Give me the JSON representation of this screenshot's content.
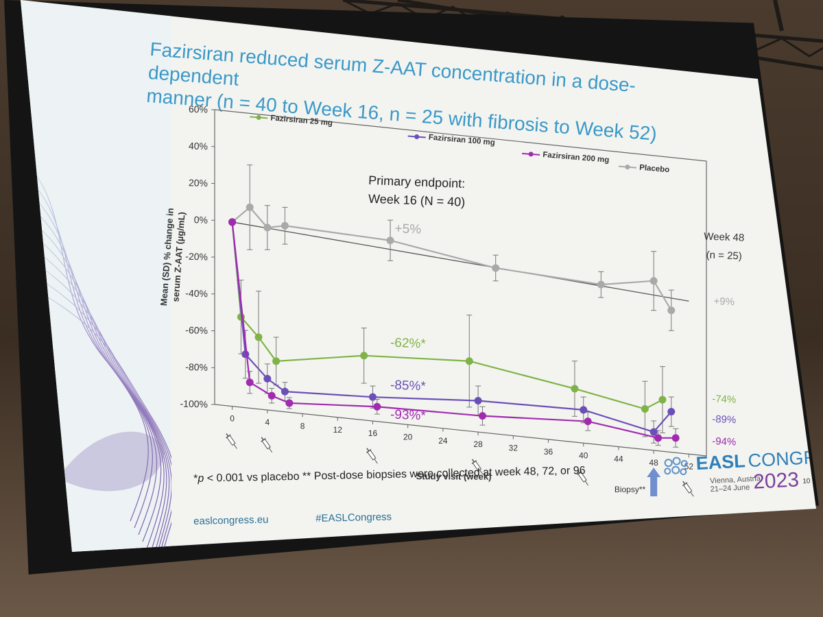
{
  "slide": {
    "title_line1": "Fazirsiran reduced serum Z-AAT concentration in a dose-dependent",
    "title_line2": "manner (n = 40 to Week 16, n = 25 with fibrosis to Week 52)",
    "footnote_p": "p",
    "footnote_rest": " < 0.001 vs placebo  ** Post-dose biopsies were collected at week 48, 72, or 96",
    "url": "easlcongress.eu",
    "hashtag": "#EASLCongress",
    "logo_word1": "EASL",
    "logo_word2": "CONGRESS",
    "logo_city": "Vienna, Austria",
    "logo_dates": "21–24 June",
    "logo_year": "2023",
    "page_number_1": "10",
    "page_number_2": "10"
  },
  "colors": {
    "slide_title": "#3a98c8",
    "fazirsiran_25": "#7fb347",
    "fazirsiran_100": "#6b4fb8",
    "fazirsiran_200": "#a12ab0",
    "placebo": "#a9a9a9"
  },
  "chart_data": {
    "type": "line",
    "xlabel": "Study visit (week)",
    "ylabel_line1": "Mean (SD) % change in",
    "ylabel_line2": "serum Z-AAT (µg/mL)",
    "xlim": [
      -2,
      54
    ],
    "ylim": [
      -100,
      60
    ],
    "x_ticks": [
      0,
      4,
      8,
      12,
      16,
      20,
      24,
      28,
      32,
      36,
      40,
      44,
      48,
      52
    ],
    "y_ticks": [
      60,
      40,
      20,
      0,
      -20,
      -40,
      -60,
      -80,
      -100
    ],
    "y_tick_labels": [
      "60%",
      "40%",
      "20%",
      "0%",
      "-20%",
      "-40%",
      "-60%",
      "-80%",
      "-100%"
    ],
    "legend_position": "top",
    "series": [
      {
        "name": "Fazirsiran 25 mg",
        "color": "#7fb347",
        "x": [
          0,
          1,
          3,
          5,
          15,
          27,
          39,
          47,
          49
        ],
        "y": [
          0,
          -51,
          -61,
          -73,
          -65,
          -62,
          -71,
          -78,
          -72
        ],
        "sd": [
          0,
          20,
          25,
          13,
          15,
          25,
          15,
          15,
          18
        ]
      },
      {
        "name": "Fazirsiran 100 mg",
        "color": "#6b4fb8",
        "x": [
          0,
          1.5,
          4,
          6,
          16,
          28,
          40,
          48,
          50
        ],
        "y": [
          0,
          -71,
          -83,
          -89,
          -87,
          -83,
          -82,
          -90,
          -78
        ],
        "sd": [
          0,
          13,
          8,
          5,
          6,
          8,
          7,
          6,
          8
        ]
      },
      {
        "name": "Fazirsiran 200 mg",
        "color": "#a12ab0",
        "x": [
          0,
          2,
          4.5,
          6.5,
          16.5,
          28.5,
          40.5,
          48.5,
          50.5
        ],
        "y": [
          0,
          -86,
          -92,
          -95,
          -92,
          -91,
          -88,
          -93,
          -92
        ],
        "sd": [
          0,
          6,
          4,
          3,
          4,
          5,
          5,
          4,
          5
        ]
      },
      {
        "name": "Placebo",
        "color": "#a9a9a9",
        "x": [
          0,
          2,
          4,
          6,
          18,
          30,
          42,
          48,
          50
        ],
        "y": [
          0,
          9,
          -1,
          1,
          -1,
          -10,
          -13,
          -8,
          -23
        ],
        "sd": [
          0,
          23,
          12,
          10,
          11,
          7,
          7,
          16,
          11
        ]
      }
    ],
    "placebo_trend": {
      "x": [
        0,
        52
      ],
      "y": [
        0,
        -17
      ]
    },
    "annotations": [
      {
        "text": "Primary endpoint:",
        "x": 21,
        "y": 30,
        "color": "#222222"
      },
      {
        "text": "Week 16 (N = 40)",
        "x": 21,
        "y": 20,
        "color": "#222222"
      },
      {
        "text": "+5%",
        "x": 20,
        "y": 4,
        "color": "#a9a9a9"
      },
      {
        "text": "-62%*",
        "x": 20,
        "y": -58,
        "color": "#7fb347"
      },
      {
        "text": "-85%*",
        "x": 20,
        "y": -81,
        "color": "#6b4fb8"
      },
      {
        "text": "-93%*",
        "x": 20,
        "y": -97,
        "color": "#a12ab0"
      },
      {
        "text": "Week 48",
        "x": 56,
        "y": 18,
        "color": "#333333"
      },
      {
        "text": "(n = 25)",
        "x": 56,
        "y": 8,
        "color": "#333333"
      },
      {
        "text": "+9%",
        "x": 56,
        "y": -17,
        "color": "#a9a9a9"
      },
      {
        "text": "-74%",
        "x": 56,
        "y": -70,
        "color": "#7fb347"
      },
      {
        "text": "-89%",
        "x": 56,
        "y": -81,
        "color": "#6b4fb8"
      },
      {
        "text": "-94%",
        "x": 56,
        "y": -93,
        "color": "#a12ab0"
      }
    ],
    "dosing_weeks": [
      0,
      4,
      16,
      28,
      40,
      52
    ],
    "biopsy": {
      "week": 48,
      "label": "Biopsy**"
    }
  }
}
